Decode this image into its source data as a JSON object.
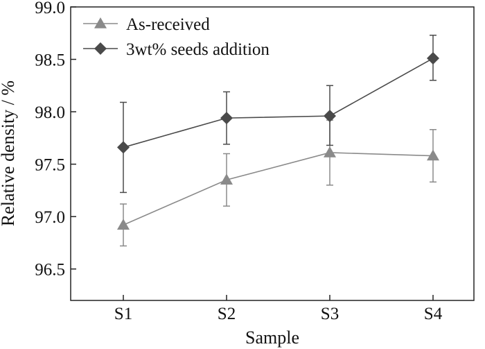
{
  "chart_data": {
    "type": "line",
    "title": "",
    "xlabel": "Sample",
    "ylabel": "Relative density / %",
    "categories": [
      "S1",
      "S2",
      "S3",
      "S4"
    ],
    "ylim": [
      96.2,
      99.0
    ],
    "yticks": [
      96.5,
      97.0,
      97.5,
      98.0,
      98.5,
      99.0
    ],
    "ytick_labels": [
      "96.5",
      "97.0",
      "97.5",
      "98.0",
      "98.5",
      "99.0"
    ],
    "grid": false,
    "legend_position": "top-left",
    "series": [
      {
        "name": "As-received",
        "marker": "triangle",
        "color": "#8a8a8a",
        "values": [
          96.92,
          97.35,
          97.61,
          97.58
        ],
        "err_low": [
          96.72,
          97.1,
          97.3,
          97.33
        ],
        "err_high": [
          97.12,
          97.6,
          97.92,
          97.83
        ]
      },
      {
        "name": "3wt% seeds addition",
        "marker": "diamond",
        "color": "#4a4a4a",
        "values": [
          97.66,
          97.94,
          97.96,
          98.51
        ],
        "err_low": [
          97.23,
          97.69,
          97.68,
          98.3
        ],
        "err_high": [
          98.09,
          98.19,
          98.25,
          98.73
        ]
      }
    ]
  }
}
